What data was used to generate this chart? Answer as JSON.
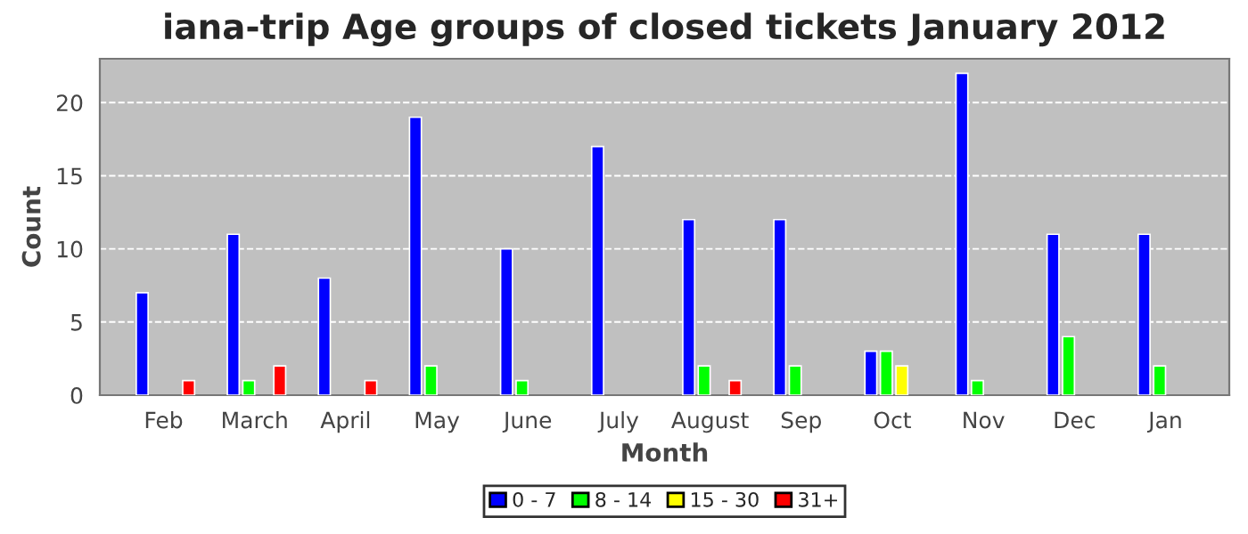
{
  "chart_data": {
    "type": "bar",
    "title": "iana-trip Age groups of closed tickets January 2012",
    "xlabel": "Month",
    "ylabel": "Count",
    "categories": [
      "Feb",
      "March",
      "April",
      "May",
      "June",
      "July",
      "August",
      "Sep",
      "Oct",
      "Nov",
      "Dec",
      "Jan"
    ],
    "series": [
      {
        "name": "0 - 7",
        "color": "#0000ff",
        "values": [
          7,
          11,
          8,
          19,
          10,
          17,
          12,
          12,
          3,
          22,
          11,
          11
        ]
      },
      {
        "name": "8 - 14",
        "color": "#00ff00",
        "values": [
          null,
          1,
          null,
          2,
          1,
          null,
          2,
          2,
          3,
          1,
          4,
          2
        ]
      },
      {
        "name": "15 - 30",
        "color": "#ffff00",
        "values": [
          null,
          null,
          null,
          null,
          null,
          null,
          null,
          null,
          2,
          null,
          null,
          null
        ]
      },
      {
        "name": "31+",
        "color": "#ff0000",
        "values": [
          1,
          2,
          1,
          null,
          null,
          null,
          1,
          null,
          null,
          null,
          null,
          null
        ]
      }
    ],
    "ylim": [
      0,
      23
    ],
    "yticks": [
      0,
      5,
      10,
      15,
      20
    ],
    "grid": "y",
    "legend": "bottom"
  }
}
